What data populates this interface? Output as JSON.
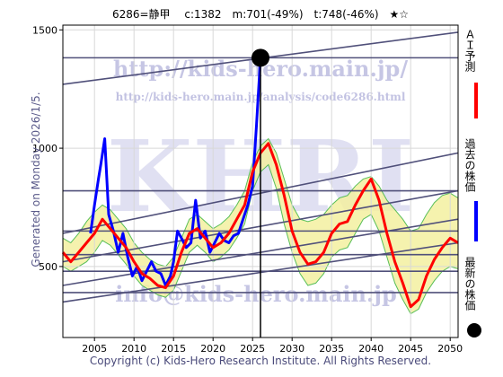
{
  "header": {
    "text": "6286=静甲　 c:1382　m:701(-49%)　t:748(-46%)　★☆"
  },
  "watermarks": {
    "url": "http://kids-hero.main.jp/",
    "analysis_url": "http://kids-hero.main.jp/analysis/code6286.html",
    "email": "info@kids-hero.main.jp",
    "logo_text": "KHRI"
  },
  "side_label": "Generated on Monday 2026/1/5.",
  "footer": "Copyright (c) Kids-Hero Research Institute. All Rights Reserved.",
  "legend": {
    "ai_forecast": "ＡＩ予測",
    "past_price": "過去の株価",
    "latest_price": "最新の株価",
    "colors": {
      "ai_forecast": "#ff0000",
      "past_price": "#0000ff",
      "latest_price": "#000000"
    }
  },
  "chart_data": {
    "type": "line",
    "xlim": [
      2001,
      2051
    ],
    "ylim": [
      200,
      1520
    ],
    "x_ticks": [
      2005,
      2010,
      2015,
      2020,
      2025,
      2030,
      2035,
      2040,
      2045,
      2050
    ],
    "y_ticks": [
      500,
      1000,
      1500
    ],
    "grid": true,
    "latest": {
      "x": 2026,
      "y": 1382,
      "label": "c:1382"
    },
    "horizontal_levels": [
      1382,
      820,
      650,
      550,
      480,
      390
    ],
    "trend_lines": [
      {
        "x": [
          2001,
          2051
        ],
        "y": [
          1270,
          1490
        ]
      },
      {
        "x": [
          2001,
          2051
        ],
        "y": [
          640,
          980
        ]
      },
      {
        "x": [
          2001,
          2051
        ],
        "y": [
          520,
          820
        ]
      },
      {
        "x": [
          2001,
          2051
        ],
        "y": [
          420,
          700
        ]
      },
      {
        "x": [
          2001,
          2051
        ],
        "y": [
          350,
          600
        ]
      }
    ],
    "series": [
      {
        "name": "過去の株価",
        "color": "#0000ff",
        "x": [
          2004.5,
          2005.0,
          2005.5,
          2005.8,
          2006.3,
          2006.8,
          2007.4,
          2008.0,
          2008.6,
          2009.2,
          2009.8,
          2010.4,
          2011.0,
          2011.6,
          2012.2,
          2012.8,
          2013.4,
          2014.0,
          2014.6,
          2015.0,
          2015.5,
          2016.0,
          2016.6,
          2017.2,
          2017.8,
          2018.4,
          2019.0,
          2019.6,
          2020.2,
          2020.8,
          2021.4,
          2022.0,
          2022.6,
          2023.2,
          2023.8,
          2024.4,
          2025.0,
          2025.5,
          2026.0
        ],
        "y": [
          640,
          760,
          870,
          930,
          1040,
          720,
          650,
          560,
          640,
          540,
          460,
          500,
          440,
          480,
          520,
          480,
          470,
          420,
          460,
          520,
          650,
          620,
          580,
          600,
          780,
          620,
          650,
          560,
          600,
          640,
          610,
          600,
          630,
          640,
          700,
          760,
          840,
          1100,
          1382
        ]
      },
      {
        "name": "ＡＩ予測",
        "color": "#ff0000",
        "x": [
          2001,
          2002,
          2003,
          2004,
          2005,
          2006,
          2007,
          2008,
          2009,
          2010,
          2011,
          2012,
          2013,
          2014,
          2015,
          2016,
          2017,
          2018,
          2019,
          2020,
          2021,
          2022,
          2023,
          2024,
          2025,
          2026,
          2027,
          2028,
          2029,
          2030,
          2031,
          2032,
          2033,
          2034,
          2035,
          2036,
          2037,
          2038,
          2039,
          2040,
          2041,
          2042,
          2043,
          2044,
          2045,
          2046,
          2047,
          2048,
          2049,
          2050,
          2051
        ],
        "y": [
          560,
          520,
          560,
          600,
          640,
          700,
          660,
          620,
          580,
          520,
          470,
          450,
          420,
          410,
          460,
          560,
          640,
          660,
          620,
          580,
          600,
          640,
          700,
          760,
          900,
          980,
          1020,
          930,
          800,
          650,
          560,
          510,
          520,
          560,
          640,
          680,
          690,
          760,
          820,
          870,
          780,
          640,
          520,
          430,
          330,
          360,
          460,
          530,
          580,
          620,
          600
        ]
      }
    ],
    "bands": [
      {
        "upper": [
          620,
          600,
          640,
          690,
          730,
          760,
          740,
          700,
          660,
          600,
          560,
          530,
          510,
          500,
          540,
          620,
          700,
          720,
          690,
          660,
          680,
          710,
          760,
          820,
          940,
          1010,
          1040,
          980,
          870,
          760,
          700,
          690,
          700,
          720,
          760,
          790,
          800,
          840,
          870,
          880,
          840,
          780,
          740,
          700,
          650,
          660,
          720,
          770,
          800,
          810,
          790
        ],
        "lower": [
          500,
          480,
          500,
          520,
          560,
          610,
          590,
          550,
          510,
          460,
          420,
          400,
          380,
          370,
          400,
          480,
          560,
          590,
          560,
          520,
          540,
          570,
          620,
          680,
          820,
          900,
          930,
          830,
          680,
          560,
          470,
          420,
          430,
          470,
          540,
          570,
          580,
          640,
          700,
          720,
          650,
          540,
          430,
          360,
          300,
          320,
          390,
          440,
          480,
          500,
          490
        ]
      }
    ]
  }
}
